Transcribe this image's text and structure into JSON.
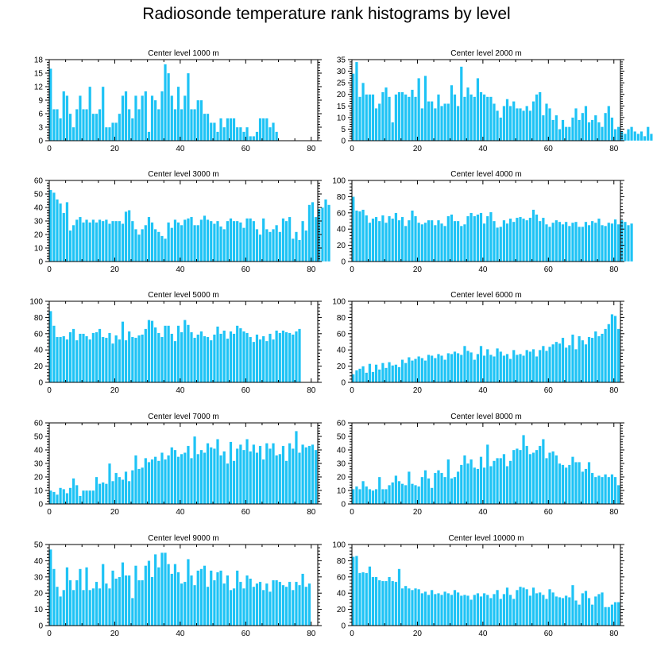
{
  "title": "Radiosonde temperature rank histograms by level",
  "colors": {
    "bar": "#1EC3F5",
    "bar_edge": "#ffffff",
    "axis": "#000000"
  },
  "chart_data": [
    {
      "type": "bar",
      "title": "Center level 1000 m",
      "xlim": [
        0,
        82
      ],
      "ylim": [
        0,
        18
      ],
      "xticks": [
        0,
        20,
        40,
        60,
        80
      ],
      "yticks": [
        0,
        3,
        6,
        9,
        12,
        15,
        18
      ],
      "values": [
        16,
        7,
        7,
        5,
        11,
        10,
        6,
        3,
        7,
        10,
        7,
        7,
        12,
        6,
        6,
        7,
        12,
        3,
        3,
        4,
        4,
        6,
        10,
        11,
        7,
        5,
        10,
        7,
        10,
        11,
        2,
        10,
        9,
        7,
        11,
        17,
        15,
        10,
        7,
        12,
        7,
        10,
        15,
        7,
        7,
        9,
        9,
        6,
        6,
        4,
        4,
        2,
        5,
        3,
        5,
        5,
        5,
        3,
        3,
        2,
        3,
        1,
        1,
        2,
        5,
        5,
        5,
        3,
        4,
        2
      ]
    },
    {
      "type": "bar",
      "title": "Center level 2000 m",
      "xlim": [
        0,
        82
      ],
      "ylim": [
        0,
        35
      ],
      "xticks": [
        0,
        20,
        40,
        60,
        80
      ],
      "yticks": [
        0,
        5,
        10,
        15,
        20,
        25,
        30,
        35
      ],
      "values": [
        29,
        34,
        19,
        25,
        20,
        20,
        20,
        14,
        16,
        21,
        23,
        19,
        8,
        20,
        21,
        21,
        20,
        19,
        22,
        19,
        27,
        14,
        28,
        17,
        17,
        14,
        20,
        15,
        16,
        16,
        24,
        20,
        15,
        32,
        19,
        23,
        20,
        19,
        27,
        21,
        20,
        19,
        19,
        16,
        13,
        10,
        15,
        18,
        15,
        17,
        14,
        14,
        13,
        15,
        13,
        17,
        20,
        21,
        11,
        16,
        14,
        9,
        11,
        5,
        9,
        6,
        6,
        10,
        14,
        9,
        12,
        15,
        8,
        9,
        11,
        8,
        6,
        12,
        15,
        10,
        5,
        6,
        4,
        3,
        5,
        6,
        4,
        3,
        4,
        2,
        6,
        3
      ]
    },
    {
      "type": "bar",
      "title": "Center level 3000 m",
      "xlim": [
        0,
        82
      ],
      "ylim": [
        0,
        60
      ],
      "xticks": [
        0,
        20,
        40,
        60,
        80
      ],
      "yticks": [
        0,
        10,
        20,
        30,
        40,
        50,
        60
      ],
      "values": [
        53,
        51,
        46,
        43,
        36,
        44,
        23,
        27,
        31,
        33,
        29,
        31,
        29,
        31,
        29,
        31,
        30,
        31,
        28,
        30,
        30,
        30,
        28,
        37,
        38,
        30,
        24,
        20,
        24,
        27,
        33,
        29,
        24,
        22,
        19,
        17,
        29,
        25,
        31,
        29,
        27,
        31,
        32,
        33,
        27,
        27,
        31,
        34,
        31,
        30,
        28,
        30,
        26,
        24,
        30,
        32,
        30,
        30,
        29,
        25,
        32,
        32,
        30,
        24,
        20,
        32,
        24,
        22,
        24,
        27,
        22,
        32,
        30,
        33,
        17,
        22,
        16,
        30,
        23,
        42,
        44,
        33,
        39,
        40,
        46,
        42
      ]
    },
    {
      "type": "bar",
      "title": "Center level 4000 m",
      "xlim": [
        0,
        82
      ],
      "ylim": [
        0,
        100
      ],
      "xticks": [
        0,
        20,
        40,
        60,
        80
      ],
      "yticks": [
        0,
        20,
        40,
        60,
        80,
        100
      ],
      "values": [
        80,
        63,
        62,
        64,
        57,
        48,
        53,
        55,
        50,
        57,
        48,
        56,
        53,
        60,
        51,
        55,
        44,
        51,
        63,
        56,
        48,
        46,
        48,
        51,
        51,
        45,
        51,
        47,
        44,
        56,
        58,
        50,
        50,
        44,
        46,
        56,
        60,
        56,
        58,
        60,
        47,
        56,
        61,
        50,
        42,
        43,
        51,
        47,
        53,
        49,
        54,
        55,
        53,
        51,
        54,
        64,
        58,
        50,
        54,
        46,
        43,
        48,
        51,
        49,
        46,
        49,
        44,
        48,
        49,
        43,
        43,
        49,
        45,
        50,
        48,
        53,
        45,
        44,
        48,
        47,
        52,
        46,
        51,
        49,
        45,
        47
      ]
    },
    {
      "type": "bar",
      "title": "Center level 5000 m",
      "xlim": [
        0,
        82
      ],
      "ylim": [
        0,
        100
      ],
      "xticks": [
        0,
        20,
        40,
        60,
        80
      ],
      "yticks": [
        0,
        20,
        40,
        60,
        80,
        100
      ],
      "values": [
        88,
        70,
        56,
        56,
        57,
        53,
        62,
        66,
        52,
        60,
        60,
        57,
        53,
        61,
        62,
        66,
        56,
        55,
        61,
        48,
        58,
        53,
        75,
        52,
        63,
        56,
        55,
        58,
        59,
        66,
        77,
        76,
        68,
        61,
        56,
        70,
        70,
        60,
        51,
        70,
        62,
        77,
        71,
        62,
        55,
        59,
        63,
        57,
        56,
        52,
        59,
        69,
        60,
        64,
        54,
        63,
        60,
        70,
        67,
        63,
        61,
        56,
        50,
        59,
        53,
        57,
        51,
        60,
        53,
        64,
        61,
        64,
        62,
        61,
        59,
        63,
        66
      ]
    },
    {
      "type": "bar",
      "title": "Center level 6000 m",
      "xlim": [
        0,
        82
      ],
      "ylim": [
        0,
        100
      ],
      "xticks": [
        0,
        20,
        40,
        60,
        80
      ],
      "yticks": [
        0,
        20,
        40,
        60,
        80,
        100
      ],
      "values": [
        10,
        15,
        17,
        20,
        12,
        23,
        13,
        22,
        16,
        24,
        18,
        25,
        21,
        22,
        19,
        28,
        24,
        31,
        27,
        29,
        32,
        30,
        27,
        34,
        33,
        30,
        35,
        33,
        28,
        36,
        35,
        38,
        36,
        34,
        45,
        39,
        37,
        28,
        35,
        45,
        33,
        41,
        34,
        32,
        42,
        38,
        33,
        35,
        29,
        40,
        34,
        35,
        33,
        40,
        38,
        41,
        32,
        40,
        45,
        39,
        44,
        47,
        50,
        48,
        55,
        43,
        46,
        59,
        41,
        57,
        52,
        47,
        56,
        55,
        63,
        57,
        60,
        66,
        72,
        84,
        82,
        66
      ]
    },
    {
      "type": "bar",
      "title": "Center level 7000 m",
      "xlim": [
        0,
        82
      ],
      "ylim": [
        0,
        60
      ],
      "xticks": [
        0,
        20,
        40,
        60,
        80
      ],
      "yticks": [
        0,
        10,
        20,
        30,
        40,
        50,
        60
      ],
      "values": [
        10,
        9,
        7,
        12,
        11,
        8,
        12,
        19,
        14,
        6,
        10,
        10,
        10,
        10,
        20,
        15,
        16,
        15,
        30,
        17,
        23,
        20,
        18,
        24,
        17,
        25,
        36,
        26,
        27,
        34,
        31,
        33,
        35,
        32,
        38,
        33,
        36,
        42,
        40,
        35,
        37,
        38,
        43,
        34,
        50,
        37,
        40,
        38,
        45,
        42,
        41,
        48,
        36,
        39,
        30,
        46,
        32,
        41,
        44,
        40,
        48,
        39,
        44,
        38,
        43,
        33,
        45,
        41,
        45,
        36,
        37,
        43,
        32,
        45,
        41,
        54,
        38,
        44,
        42,
        43,
        44,
        40
      ]
    },
    {
      "type": "bar",
      "title": "Center level 8000 m",
      "xlim": [
        0,
        82
      ],
      "ylim": [
        0,
        60
      ],
      "xticks": [
        0,
        20,
        40,
        60,
        80
      ],
      "yticks": [
        0,
        10,
        20,
        30,
        40,
        50,
        60
      ],
      "values": [
        11,
        13,
        11,
        17,
        13,
        11,
        10,
        11,
        20,
        11,
        11,
        14,
        16,
        21,
        17,
        15,
        14,
        24,
        15,
        14,
        13,
        20,
        25,
        19,
        12,
        23,
        25,
        23,
        20,
        33,
        19,
        20,
        24,
        29,
        36,
        30,
        33,
        27,
        26,
        35,
        27,
        44,
        28,
        32,
        34,
        34,
        37,
        28,
        32,
        40,
        41,
        40,
        51,
        43,
        37,
        38,
        40,
        43,
        48,
        34,
        38,
        39,
        36,
        30,
        29,
        27,
        29,
        35,
        31,
        31,
        24,
        26,
        31,
        23,
        20,
        21,
        20,
        22,
        20,
        22,
        20,
        14
      ]
    },
    {
      "type": "bar",
      "title": "Center level 9000 m",
      "xlim": [
        0,
        82
      ],
      "ylim": [
        0,
        50
      ],
      "xticks": [
        0,
        20,
        40,
        60,
        80
      ],
      "yticks": [
        0,
        10,
        20,
        30,
        40,
        50
      ],
      "values": [
        47,
        35,
        24,
        18,
        22,
        36,
        28,
        22,
        28,
        35,
        22,
        36,
        22,
        23,
        27,
        23,
        38,
        26,
        23,
        34,
        29,
        30,
        39,
        31,
        31,
        17,
        37,
        28,
        28,
        37,
        40,
        30,
        44,
        36,
        45,
        45,
        38,
        32,
        38,
        33,
        26,
        27,
        41,
        31,
        25,
        34,
        35,
        37,
        24,
        34,
        28,
        33,
        34,
        26,
        31,
        22,
        23,
        34,
        27,
        23,
        31,
        29,
        24,
        26,
        27,
        22,
        26,
        21,
        28,
        28,
        27,
        25,
        24,
        27,
        22,
        27,
        25,
        32,
        24,
        26
      ]
    },
    {
      "type": "bar",
      "title": "Center level 10000 m",
      "xlim": [
        0,
        82
      ],
      "ylim": [
        0,
        100
      ],
      "xticks": [
        0,
        20,
        40,
        60,
        80
      ],
      "yticks": [
        0,
        20,
        40,
        60,
        80,
        100
      ],
      "values": [
        85,
        86,
        65,
        66,
        65,
        73,
        60,
        60,
        56,
        55,
        55,
        60,
        55,
        54,
        70,
        46,
        49,
        46,
        44,
        46,
        45,
        40,
        42,
        38,
        44,
        39,
        40,
        38,
        42,
        40,
        38,
        44,
        41,
        37,
        38,
        37,
        32,
        38,
        40,
        36,
        40,
        38,
        34,
        39,
        44,
        33,
        39,
        47,
        38,
        33,
        44,
        48,
        47,
        45,
        37,
        47,
        40,
        41,
        38,
        33,
        45,
        41,
        36,
        35,
        34,
        37,
        35,
        50,
        31,
        26,
        40,
        43,
        34,
        26,
        36,
        39,
        41,
        23,
        23,
        26,
        29,
        29
      ]
    }
  ]
}
